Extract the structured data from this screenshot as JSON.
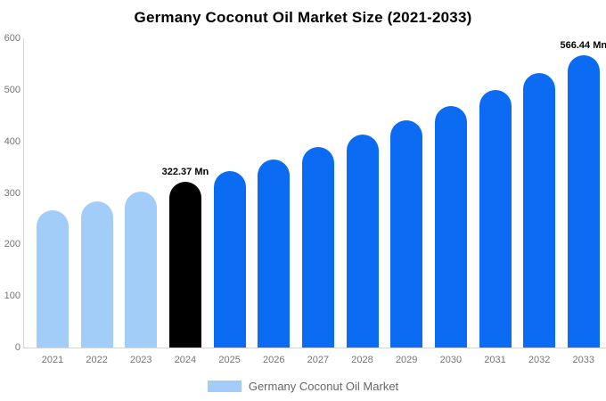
{
  "title": "Germany Coconut Oil Market Size (2021-2033)",
  "legend": {
    "label": "Germany Coconut Oil Market",
    "swatch_color": "#a3cdf9"
  },
  "colors": {
    "historical_bar": "#a3cdf9",
    "highlight_bar": "#000000",
    "forecast_bar": "#0b6cf3",
    "axis_line": "#d6d6d6",
    "tick_text": "#757575",
    "value_label_text": "#000000"
  },
  "chart_data": {
    "type": "bar",
    "title": "Germany Coconut Oil Market Size (2021-2033)",
    "xlabel": "",
    "ylabel": "",
    "categories": [
      "2021",
      "2022",
      "2023",
      "2024",
      "2025",
      "2026",
      "2027",
      "2028",
      "2029",
      "2030",
      "2031",
      "2032",
      "2033"
    ],
    "values": [
      266,
      284,
      303,
      322.37,
      343,
      365,
      389,
      414,
      441,
      469,
      500,
      532,
      566.44
    ],
    "unit": "Mn",
    "ylim": [
      0,
      600
    ],
    "yticks": [
      0,
      100,
      200,
      300,
      400,
      500,
      600
    ],
    "grid": false,
    "legend_position": "bottom",
    "bar_styles": [
      "historical",
      "historical",
      "historical",
      "highlight",
      "forecast",
      "forecast",
      "forecast",
      "forecast",
      "forecast",
      "forecast",
      "forecast",
      "forecast",
      "forecast"
    ],
    "annotations": [
      {
        "category": "2024",
        "text": "322.37 Mn"
      },
      {
        "category": "2033",
        "text": "566.44 Mn"
      }
    ]
  }
}
